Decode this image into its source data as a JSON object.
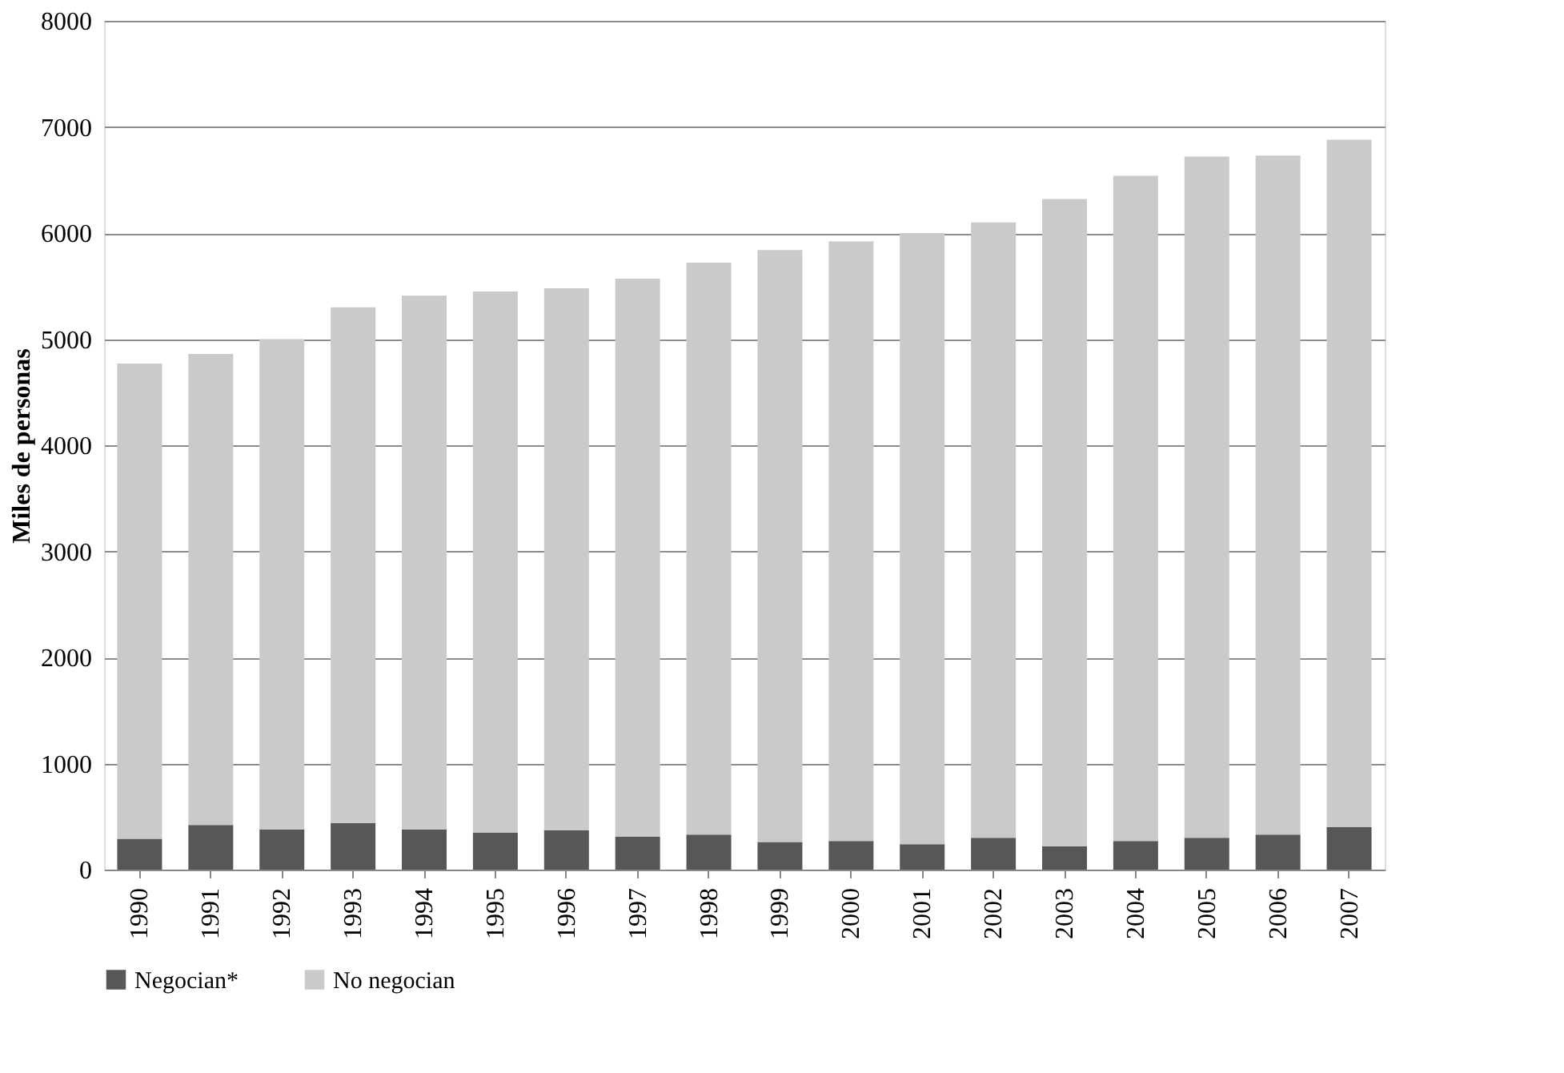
{
  "chart_data": {
    "type": "bar",
    "stacked": true,
    "ylabel": "Miles de personas",
    "categories": [
      "1990",
      "1991",
      "1992",
      "1993",
      "1994",
      "1995",
      "1996",
      "1997",
      "1998",
      "1999",
      "2000",
      "2001",
      "2002",
      "2003",
      "2004",
      "2005",
      "2006",
      "2007"
    ],
    "series": [
      {
        "name": "Negocian*",
        "color": "#575757",
        "values": [
          290,
          420,
          380,
          440,
          380,
          350,
          370,
          310,
          330,
          260,
          270,
          240,
          300,
          220,
          270,
          300,
          330,
          400
        ]
      },
      {
        "name": "No negocian",
        "color": "#c9caca",
        "values": [
          4480,
          4440,
          4620,
          4860,
          5030,
          5100,
          5110,
          5260,
          5390,
          5580,
          5650,
          5760,
          5800,
          6100,
          6270,
          6420,
          6400,
          6480
        ]
      }
    ],
    "ylim": [
      0,
      8000
    ],
    "yticks": [
      0,
      1000,
      2000,
      3000,
      4000,
      5000,
      6000,
      7000,
      8000
    ],
    "grid": "y",
    "legend": "bottom"
  }
}
